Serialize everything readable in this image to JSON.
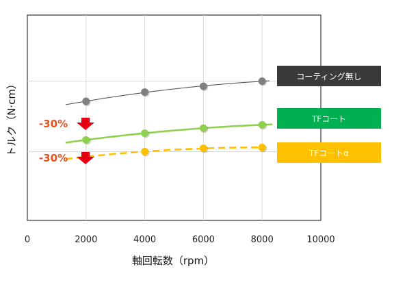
{
  "chart_data": {
    "type": "line",
    "xlabel": "軸回転数（rpm）",
    "ylabel": "トルク（N·cm）",
    "xlim": [
      0,
      10000
    ],
    "xticks": [
      "0",
      "2000",
      "4000",
      "6000",
      "8000",
      "10000"
    ],
    "grid": true,
    "legend_position": "right",
    "series": [
      {
        "name": "コーティング無し",
        "color": "#7f7f7f",
        "box_color": "#3a3a3a",
        "line_style": "solid-thin",
        "x": [
          2000,
          4000,
          6000,
          8000
        ],
        "y": [
          7.1,
          7.65,
          8.0,
          8.3
        ]
      },
      {
        "name": "TFコート",
        "color": "#8fd14f",
        "box_color": "#00b050",
        "line_style": "solid-thick",
        "x": [
          2000,
          4000,
          6000,
          8000
        ],
        "y": [
          4.8,
          5.2,
          5.5,
          5.7
        ]
      },
      {
        "name": "TFコートα",
        "color": "#ffc000",
        "box_color": "#ffc000",
        "line_style": "dashed",
        "x": [
          2000,
          4000,
          6000,
          8000
        ],
        "y": [
          3.8,
          4.1,
          4.3,
          4.35
        ]
      }
    ],
    "annotations": [
      {
        "text": "-30%",
        "color": "#e8501c"
      },
      {
        "text": "-30%",
        "color": "#e8501c"
      }
    ]
  }
}
